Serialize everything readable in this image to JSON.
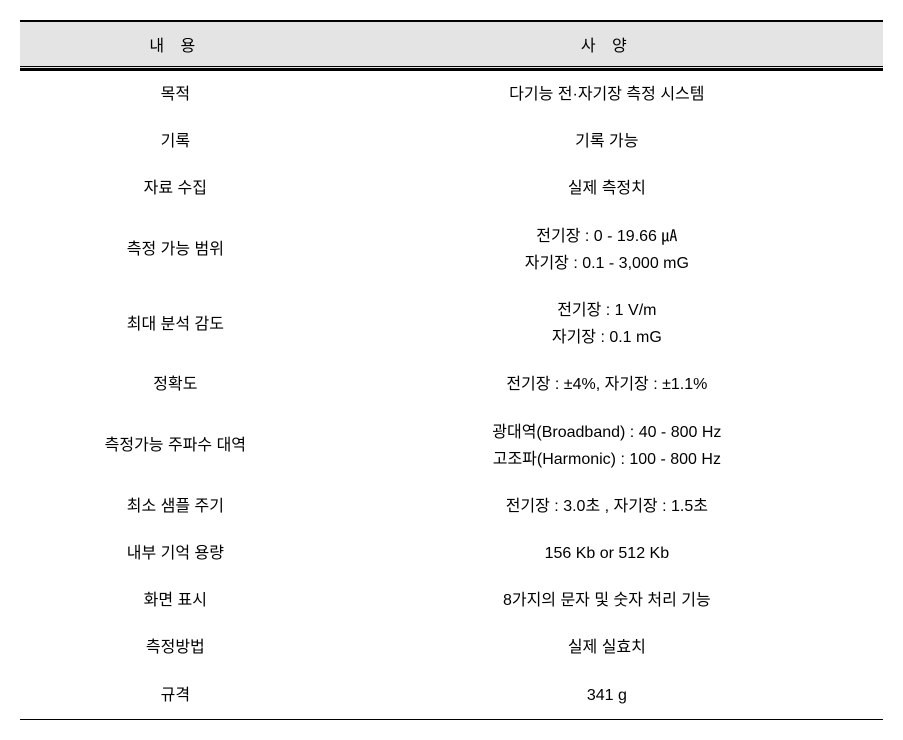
{
  "table": {
    "header_col1": "내 용",
    "header_col2": "사 양",
    "rows": [
      {
        "label": "목적",
        "value": "다기능 전·자기장 측정 시스템"
      },
      {
        "label": "기록",
        "value": "기록 가능"
      },
      {
        "label": "자료 수집",
        "value": "실제 측정치"
      },
      {
        "label": "측정 가능 범위",
        "value": "전기장 : 0 - 19.66 ㎂\n자기장 : 0.1 - 3,000 mG"
      },
      {
        "label": "최대 분석 감도",
        "value": "전기장 : 1 V/m\n자기장 : 0.1 mG"
      },
      {
        "label": "정확도",
        "value": "전기장 : ±4%, 자기장 : ±1.1%"
      },
      {
        "label": "측정가능 주파수 대역",
        "value": "광대역(Broadband) : 40 - 800 Hz\n고조파(Harmonic) : 100 - 800 Hz"
      },
      {
        "label": "최소 샘플 주기",
        "value": "전기장 : 3.0초 , 자기장 : 1.5초"
      },
      {
        "label": "내부 기억 용량",
        "value": "156 Kb or 512 Kb"
      },
      {
        "label": "화면 표시",
        "value": "8가지의 문자 및 숫자 처리 기능"
      },
      {
        "label": "측정방법",
        "value": "실제 실효치"
      },
      {
        "label": "규격",
        "value": "341 g"
      }
    ],
    "colors": {
      "header_bg": "#e4e4e4",
      "border": "#000000",
      "background": "#ffffff",
      "text": "#000000"
    },
    "column_widths": [
      "36%",
      "64%"
    ],
    "font_size": 16,
    "header_letter_spacing": 6
  }
}
